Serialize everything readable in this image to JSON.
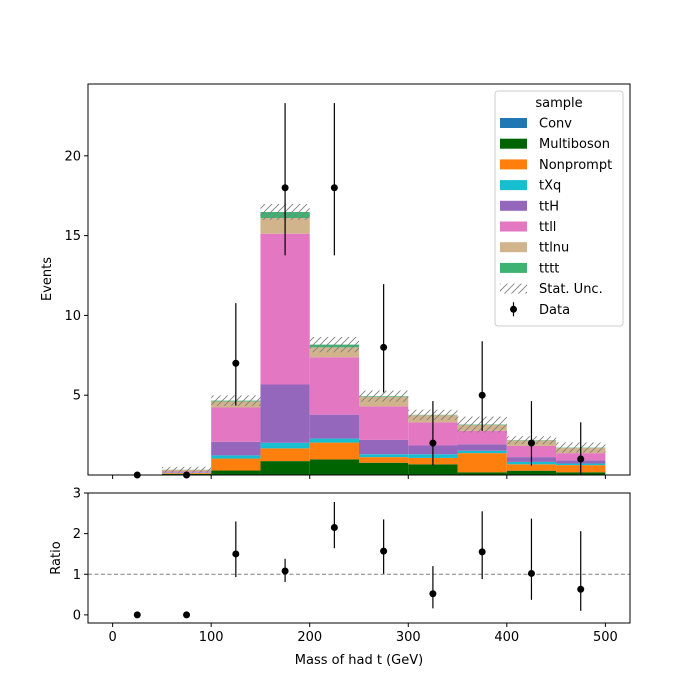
{
  "chart_data": {
    "type": "bar",
    "subtype": "stacked-step-histogram-with-ratio",
    "x": {
      "label": "Mass of had t (GeV)",
      "lim": [
        -25,
        525
      ],
      "ticks": [
        0,
        100,
        200,
        300,
        400,
        500
      ],
      "bin_edges": [
        0,
        50,
        100,
        150,
        200,
        250,
        300,
        350,
        400,
        450,
        500
      ]
    },
    "main": {
      "ylabel": "Events",
      "ylim": [
        0,
        24.5
      ],
      "yticks": [
        5,
        10,
        15,
        20
      ]
    },
    "ratio": {
      "ylabel": "Ratio",
      "ylim": [
        -0.2,
        3
      ],
      "yticks": [
        0,
        1,
        2,
        3
      ],
      "reference_line": 1.0,
      "values": [
        0.0,
        0.0,
        1.5,
        1.08,
        2.15,
        1.57,
        0.52,
        1.55,
        1.02,
        0.63
      ],
      "err_low": [
        0,
        0,
        0.57,
        0.27,
        0.51,
        0.56,
        0.36,
        0.67,
        0.65,
        0.53
      ],
      "err_high": [
        0,
        0,
        0.8,
        0.3,
        0.63,
        0.78,
        0.68,
        1.0,
        1.35,
        1.43
      ]
    },
    "series": [
      {
        "name": "Conv",
        "color": "#1f77b4",
        "values": [
          0,
          0.02,
          0.03,
          0.02,
          0.03,
          0.02,
          0.02,
          0.02,
          0.02,
          0.02
        ]
      },
      {
        "name": "Multiboson",
        "color": "#006400",
        "values": [
          0,
          0.05,
          0.25,
          0.85,
          0.95,
          0.75,
          0.65,
          0.15,
          0.25,
          0.15
        ]
      },
      {
        "name": "Nonprompt",
        "color": "#ff7f0e",
        "values": [
          0,
          0.05,
          0.75,
          0.8,
          1.05,
          0.35,
          0.4,
          1.2,
          0.4,
          0.45
        ]
      },
      {
        "name": "tXq",
        "color": "#17becf",
        "values": [
          0,
          0.02,
          0.2,
          0.35,
          0.25,
          0.18,
          0.23,
          0.15,
          0.15,
          0.1
        ]
      },
      {
        "name": "ttH",
        "color": "#9467bd",
        "values": [
          0,
          0.03,
          0.85,
          3.65,
          1.5,
          0.9,
          0.55,
          0.4,
          0.3,
          0.2
        ]
      },
      {
        "name": "ttll",
        "color": "#e377c2",
        "values": [
          0,
          0.05,
          2.15,
          9.45,
          3.6,
          2.1,
          1.45,
          0.85,
          0.7,
          0.45
        ]
      },
      {
        "name": "ttlnu",
        "color": "#d2b48c",
        "values": [
          0,
          0.1,
          0.38,
          0.98,
          0.62,
          0.6,
          0.45,
          0.36,
          0.34,
          0.33
        ]
      },
      {
        "name": "tttt",
        "color": "#3cb371",
        "values": [
          0,
          0.01,
          0.05,
          0.38,
          0.17,
          0.04,
          0.02,
          0.03,
          0.02,
          0.02
        ]
      }
    ],
    "stat_unc": {
      "name": "Stat. Unc.",
      "half_width": [
        0.02,
        0.18,
        0.33,
        0.5,
        0.48,
        0.35,
        0.32,
        0.5,
        0.25,
        0.32
      ]
    },
    "data": {
      "name": "Data",
      "x": [
        25,
        75,
        125,
        175,
        225,
        275,
        325,
        375,
        425,
        475
      ],
      "values": [
        0,
        0,
        7,
        18,
        18,
        8,
        2,
        5,
        2,
        1
      ],
      "err_low": [
        0,
        0,
        2.65,
        4.24,
        4.24,
        2.83,
        1.41,
        2.24,
        1.41,
        1.0
      ],
      "err_high": [
        0,
        0,
        3.77,
        5.3,
        5.3,
        3.96,
        2.63,
        3.38,
        2.63,
        2.3
      ]
    },
    "legend": {
      "title": "sample",
      "placement": "top-right"
    }
  }
}
